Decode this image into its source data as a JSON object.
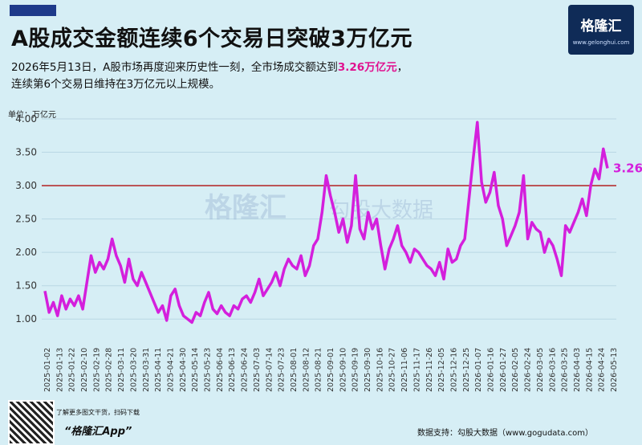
{
  "header": {
    "title": "A股成交金额连续6个交易日突破3万亿元",
    "subtitle_line1_pre": "2026年5月13日，A股市场再度迎来历史性一刻，全市场成交额达到",
    "subtitle_highlight": "3.26万亿元",
    "subtitle_line1_post": "，",
    "subtitle_line2": "连续第6个交易日维持在3万亿元以上规模。"
  },
  "logo": {
    "name": "格隆汇",
    "url": "www.gelonghui.com"
  },
  "watermark": {
    "left": "格隆汇",
    "right": "勾股大数据"
  },
  "colors": {
    "line": "#d41fdc",
    "ref": "#b22222",
    "highlight": "#e0118f"
  },
  "chart_data": {
    "type": "line",
    "ylabel": "单位：万亿元",
    "ylim": [
      0.75,
      4.0
    ],
    "yticks": [
      "1.00",
      "1.50",
      "2.00",
      "2.50",
      "3.00",
      "3.50",
      "4.00"
    ],
    "grid": true,
    "reference_line": 3.0,
    "end_label": "3.26",
    "xticks": [
      "2025-01-02",
      "2025-01-13",
      "2025-01-22",
      "2025-02-10",
      "2025-02-19",
      "2025-02-28",
      "2025-03-11",
      "2025-03-20",
      "2025-03-31",
      "2025-04-11",
      "2025-04-21",
      "2025-04-30",
      "2025-05-14",
      "2025-05-23",
      "2025-06-04",
      "2025-06-13",
      "2025-06-24",
      "2025-07-03",
      "2025-07-14",
      "2025-07-23",
      "2025-08-01",
      "2025-08-12",
      "2025-08-21",
      "2025-09-01",
      "2025-09-10",
      "2025-09-19",
      "2025-09-30",
      "2025-10-16",
      "2025-10-27",
      "2025-11-06",
      "2025-11-17",
      "2025-11-26",
      "2025-12-05",
      "2025-12-16",
      "2025-12-25",
      "2026-01-07",
      "2026-01-16",
      "2026-01-27",
      "2026-02-05",
      "2026-02-24",
      "2026-03-05",
      "2026-03-16",
      "2026-03-25",
      "2026-04-03",
      "2026-04-15",
      "2026-04-24",
      "2026-05-13"
    ],
    "values": [
      1.42,
      1.1,
      1.25,
      1.05,
      1.35,
      1.15,
      1.3,
      1.2,
      1.35,
      1.15,
      1.55,
      1.95,
      1.7,
      1.85,
      1.75,
      1.9,
      2.2,
      1.95,
      1.8,
      1.55,
      1.9,
      1.6,
      1.5,
      1.7,
      1.55,
      1.4,
      1.25,
      1.1,
      1.2,
      0.98,
      1.35,
      1.45,
      1.2,
      1.05,
      1.0,
      0.95,
      1.1,
      1.05,
      1.25,
      1.4,
      1.15,
      1.08,
      1.2,
      1.1,
      1.05,
      1.2,
      1.15,
      1.3,
      1.35,
      1.25,
      1.4,
      1.6,
      1.35,
      1.45,
      1.55,
      1.7,
      1.5,
      1.75,
      1.9,
      1.8,
      1.75,
      1.95,
      1.65,
      1.8,
      2.1,
      2.2,
      2.6,
      3.15,
      2.85,
      2.6,
      2.3,
      2.5,
      2.15,
      2.4,
      3.15,
      2.35,
      2.2,
      2.6,
      2.35,
      2.5,
      2.1,
      1.75,
      2.05,
      2.2,
      2.4,
      2.1,
      2.0,
      1.85,
      2.05,
      2.0,
      1.9,
      1.8,
      1.75,
      1.65,
      1.85,
      1.6,
      2.05,
      1.85,
      1.9,
      2.1,
      2.2,
      2.8,
      3.4,
      3.95,
      3.05,
      2.75,
      2.9,
      3.2,
      2.7,
      2.5,
      2.1,
      2.25,
      2.4,
      2.6,
      3.15,
      2.2,
      2.45,
      2.35,
      2.3,
      2.0,
      2.2,
      2.1,
      1.9,
      1.65,
      2.4,
      2.3,
      2.45,
      2.6,
      2.8,
      2.55,
      3.0,
      3.25,
      3.1,
      3.55,
      3.26
    ]
  },
  "footer": {
    "qr_caption": "了解更多图文干货，扫码下载",
    "app_name": "“格隆汇App”",
    "source": "数据支持：勾股大数据（www.gogudata.com）"
  }
}
